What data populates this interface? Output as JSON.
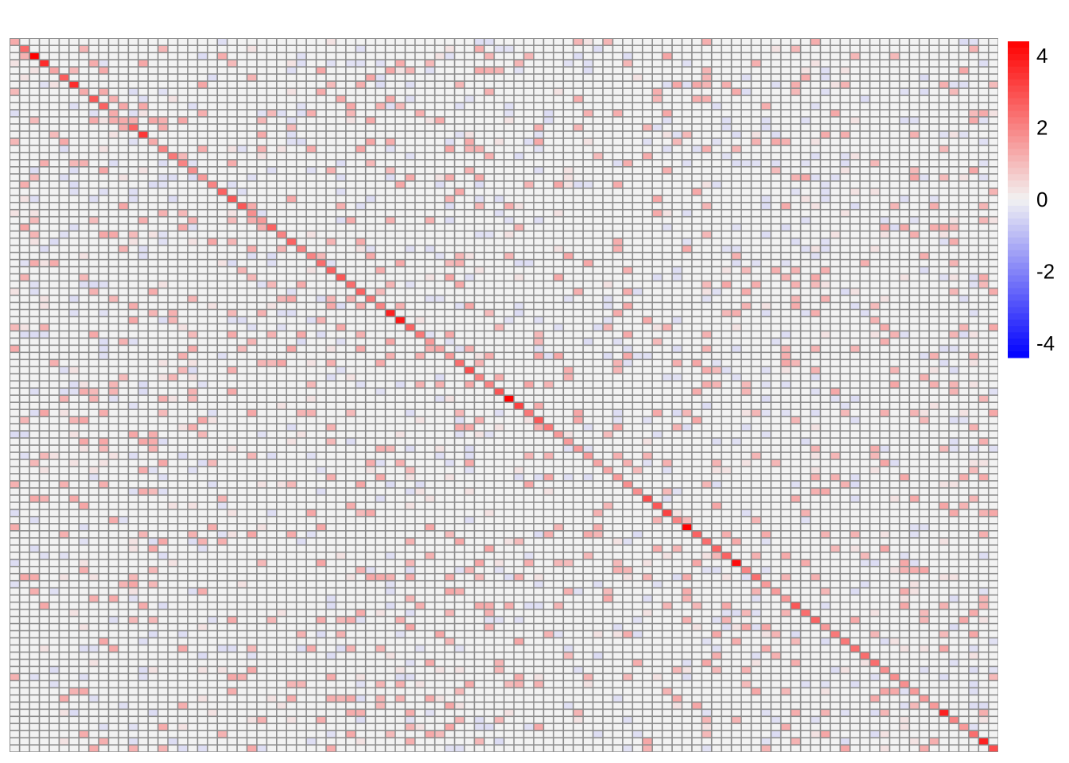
{
  "chart_data": {
    "type": "heatmap",
    "title": "",
    "xlabel": "",
    "ylabel": "",
    "rows": 100,
    "cols": 100,
    "grid": true,
    "grid_color": "#8C8C8C",
    "color_scale": {
      "low": "#0000FF",
      "mid": "#F2F2F2",
      "high": "#FF0000",
      "range": [
        -4.4,
        4.4
      ],
      "ticks": [
        4,
        2,
        0,
        -2,
        -4
      ],
      "tick_labels": [
        "4",
        "2",
        "0",
        "-2",
        "-4"
      ],
      "legend_position": "right"
    },
    "diagonal_values": [
      1.3,
      2.5,
      4.4,
      3.6,
      1.4,
      2.7,
      3.6,
      1.3,
      2.8,
      2.6,
      1.3,
      1.3,
      2.6,
      3.4,
      1.3,
      2.0,
      2.2,
      2.0,
      1.8,
      1.6,
      2.0,
      2.6,
      2.8,
      2.8,
      1.8,
      1.6,
      2.6,
      2.0,
      2.6,
      2.0,
      2.0,
      2.4,
      2.6,
      2.8,
      2.4,
      2.6,
      2.2,
      2.0,
      3.8,
      4.0,
      2.6,
      2.2,
      1.6,
      1.4,
      1.6,
      2.4,
      3.0,
      2.0,
      2.0,
      2.8,
      4.4,
      3.2,
      2.2,
      2.8,
      2.2,
      1.6,
      1.6,
      1.6,
      1.6,
      1.4,
      1.4,
      1.6,
      1.8,
      1.8,
      3.0,
      2.8,
      3.2,
      2.0,
      4.4,
      2.6,
      2.4,
      2.6,
      2.6,
      4.2,
      2.0,
      2.4,
      1.6,
      1.6,
      1.6,
      2.8,
      2.4,
      2.6,
      1.6,
      2.2,
      2.2,
      2.4,
      2.4,
      2.4,
      1.8,
      1.8,
      1.8,
      1.6,
      1.6,
      1.6,
      3.8,
      2.0,
      1.6,
      2.4,
      3.8,
      3.0
    ]
  }
}
